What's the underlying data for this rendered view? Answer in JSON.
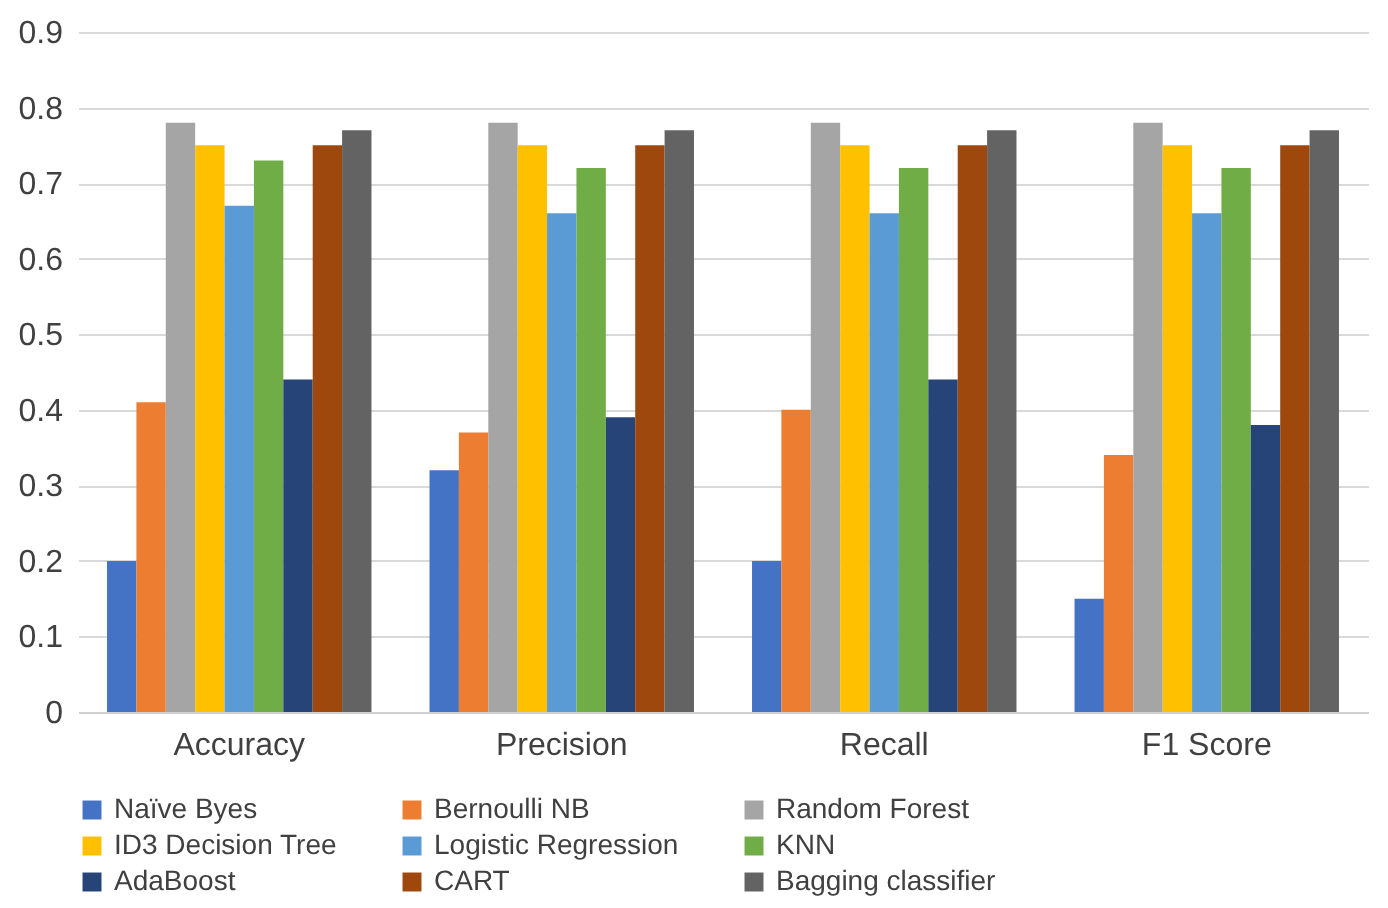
{
  "chart_data": {
    "type": "bar",
    "categories": [
      "Accuracy",
      "Precision",
      "Recall",
      "F1 Score"
    ],
    "series": [
      {
        "name": "Naïve Byes",
        "color": "#4472c4",
        "values": [
          0.2,
          0.32,
          0.2,
          0.15
        ]
      },
      {
        "name": "Bernoulli NB",
        "color": "#ed7d31",
        "values": [
          0.41,
          0.37,
          0.4,
          0.34
        ]
      },
      {
        "name": "Random Forest",
        "color": "#a5a5a5",
        "values": [
          0.78,
          0.78,
          0.78,
          0.78
        ]
      },
      {
        "name": "ID3 Decision Tree",
        "color": "#ffc000",
        "values": [
          0.75,
          0.75,
          0.75,
          0.75
        ]
      },
      {
        "name": "Logistic Regression",
        "color": "#5b9bd5",
        "values": [
          0.67,
          0.66,
          0.66,
          0.66
        ]
      },
      {
        "name": "KNN",
        "color": "#70ad47",
        "values": [
          0.73,
          0.72,
          0.72,
          0.72
        ]
      },
      {
        "name": "AdaBoost",
        "color": "#264478",
        "values": [
          0.44,
          0.39,
          0.44,
          0.38
        ]
      },
      {
        "name": "CART",
        "color": "#9e480e",
        "values": [
          0.75,
          0.75,
          0.75,
          0.75
        ]
      },
      {
        "name": "Bagging classifier",
        "color": "#636363",
        "values": [
          0.77,
          0.77,
          0.77,
          0.77
        ]
      }
    ],
    "ylim": [
      0,
      0.9
    ],
    "yticks": [
      0,
      0.1,
      0.2,
      0.3,
      0.4,
      0.5,
      0.6,
      0.7,
      0.8,
      0.9
    ],
    "grid": "y",
    "legend": "bottom"
  }
}
